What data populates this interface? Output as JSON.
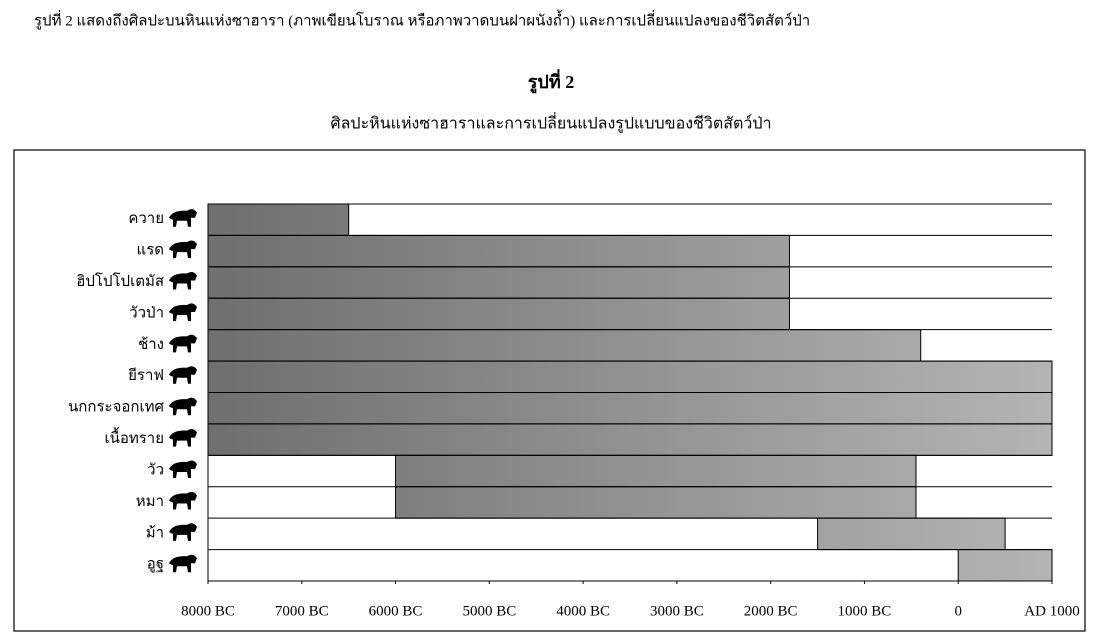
{
  "caption": "รูปที่ 2  แสดงถึงศิลปะบนหินแห่งซาฮารา (ภาพเขียนโบราณ หรือภาพวาดบนฝาผนังถ้ำ) และการเปลี่ยนแปลงของชีวิตสัตว์ป่า",
  "chart_data": {
    "type": "range-bar",
    "title": "รูปที่ 2",
    "subtitle": "ศิลปะหินแห่งซาฮาราและการเปลี่ยนแปลงรูปแบบของชีวิตสัตว์ป่า",
    "categories": [
      "ควาย",
      "แรด",
      "ฮิปโปโปเตมัส",
      "วัวป่า",
      "ช้าง",
      "ยีราฟ",
      "นกกระจอกเทศ",
      "เนื้อทราย",
      "วัว",
      "หมา",
      "ม้า",
      "อูฐ"
    ],
    "starts": [
      -8000,
      -8000,
      -8000,
      -8000,
      -8000,
      -8000,
      -8000,
      -8000,
      -6000,
      -6000,
      -1500,
      0
    ],
    "ends": [
      -6500,
      -1800,
      -1800,
      -1800,
      -400,
      1000,
      1000,
      1000,
      -450,
      -450,
      500,
      1000
    ],
    "color": "#b4b4b4",
    "xlim": [
      -8000,
      1000
    ],
    "xticks": [
      {
        "value": -8000,
        "label": "8000 BC"
      },
      {
        "value": -7000,
        "label": "7000 BC"
      },
      {
        "value": -6000,
        "label": "6000 BC"
      },
      {
        "value": -5000,
        "label": "5000 BC"
      },
      {
        "value": -4000,
        "label": "4000 BC"
      },
      {
        "value": -3000,
        "label": "3000 BC"
      },
      {
        "value": -2000,
        "label": "2000 BC"
      },
      {
        "value": -1000,
        "label": "1000 BC"
      },
      0,
      {
        "value": 1000,
        "label": "AD 1000"
      }
    ]
  }
}
